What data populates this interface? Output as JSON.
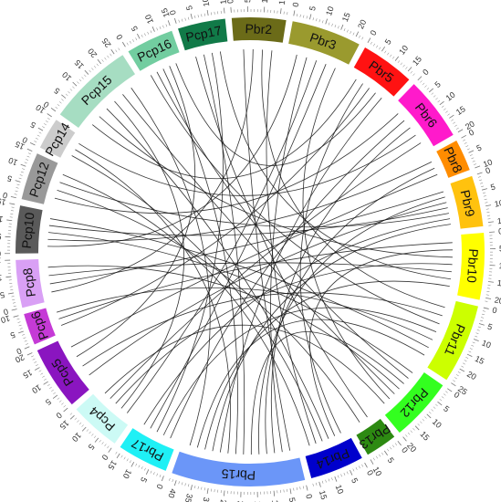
{
  "chart_data": {
    "type": "chord",
    "segments": [
      {
        "name": "Pbr2",
        "color": "#6b6b18",
        "length": 17,
        "ticks": [
          "0",
          "5",
          "10",
          "15"
        ]
      },
      {
        "name": "Pbr3",
        "color": "#9a9a2e",
        "length": 22,
        "ticks": [
          "0",
          "5",
          "10",
          "15",
          "20"
        ]
      },
      {
        "name": "Pbr5",
        "color": "#ff1212",
        "length": 17,
        "ticks": [
          "0",
          "5",
          "10",
          "15"
        ]
      },
      {
        "name": "Pbr6",
        "color": "#ff1acb",
        "length": 20,
        "ticks": [
          "0",
          "5",
          "10",
          "15",
          "20"
        ]
      },
      {
        "name": "Pbr8",
        "color": "#ff8c00",
        "length": 10,
        "ticks": [
          "0",
          "5",
          "10"
        ]
      },
      {
        "name": "Pbr9",
        "color": "#ffc20e",
        "length": 16,
        "ticks": [
          "0",
          "5",
          "10",
          "15"
        ]
      },
      {
        "name": "Pbr10",
        "color": "#ffff00",
        "length": 21,
        "ticks": [
          "0",
          "5",
          "10",
          "15",
          "20"
        ]
      },
      {
        "name": "Pbr11",
        "color": "#ccff00",
        "length": 25,
        "ticks": [
          "0",
          "5",
          "10",
          "15",
          "20",
          "25"
        ]
      },
      {
        "name": "Pbr12",
        "color": "#33ff1f",
        "length": 20,
        "ticks": [
          "0",
          "5",
          "10",
          "15",
          "20"
        ]
      },
      {
        "name": "Pbr13",
        "color": "#2d8a12",
        "length": 10,
        "ticks": [
          "0",
          "5",
          "10"
        ]
      },
      {
        "name": "Pbr14",
        "color": "#0000cc",
        "length": 17,
        "ticks": [
          "0",
          "5",
          "10",
          "15"
        ]
      },
      {
        "name": "Pbr15",
        "color": "#6b96f8",
        "length": 42,
        "ticks": [
          "0",
          "5",
          "10",
          "15",
          "20",
          "25",
          "30",
          "35",
          "40"
        ]
      },
      {
        "name": "Pbr17",
        "color": "#1ff0f5",
        "length": 16,
        "ticks": [
          "0",
          "5",
          "10",
          "15"
        ]
      },
      {
        "name": "Pcp4",
        "color": "#ccfaf5",
        "length": 16,
        "ticks": [
          "0",
          "5",
          "10",
          "15"
        ]
      },
      {
        "name": "Pcp5",
        "color": "#8a15c0",
        "length": 20,
        "ticks": [
          "0",
          "5",
          "10",
          "15",
          "20"
        ]
      },
      {
        "name": "Pcp6",
        "color": "#c53ad6",
        "length": 10,
        "ticks": [
          "0",
          "5",
          "10"
        ]
      },
      {
        "name": "Pcp8",
        "color": "#d9a0f5",
        "length": 15,
        "ticks": [
          "0",
          "5",
          "10",
          "15"
        ]
      },
      {
        "name": "Pcp10",
        "color": "#5a5a5a",
        "length": 15,
        "ticks": [
          "0",
          "5",
          "10",
          "15"
        ]
      },
      {
        "name": "Pcp12",
        "color": "#999999",
        "length": 15,
        "ticks": [
          "0",
          "5",
          "10",
          "15"
        ]
      },
      {
        "name": "Pcp14",
        "color": "#cccccc",
        "length": 10,
        "ticks": [
          "0",
          "5",
          "10"
        ]
      },
      {
        "name": "Pcp15",
        "color": "#a6ddc2",
        "length": 27,
        "ticks": [
          "0",
          "5",
          "10",
          "15",
          "20",
          "25"
        ]
      },
      {
        "name": "Pcp16",
        "color": "#72cda0",
        "length": 15,
        "ticks": [
          "0",
          "5",
          "10",
          "15"
        ]
      },
      {
        "name": "Pcp17",
        "color": "#117a48",
        "length": 15,
        "ticks": [
          "0",
          "5",
          "10",
          "15"
        ]
      }
    ],
    "links": [
      [
        "Pbr2",
        "Pbr15"
      ],
      [
        "Pbr2",
        "Pcp8"
      ],
      [
        "Pbr2",
        "Pbr11"
      ],
      [
        "Pbr3",
        "Pcp10"
      ],
      [
        "Pbr3",
        "Pbr15"
      ],
      [
        "Pbr3",
        "Pcp4"
      ],
      [
        "Pbr5",
        "Pcp15"
      ],
      [
        "Pbr5",
        "Pbr14"
      ],
      [
        "Pbr5",
        "Pcp6"
      ],
      [
        "Pbr6",
        "Pcp12"
      ],
      [
        "Pbr6",
        "Pbr17"
      ],
      [
        "Pbr6",
        "Pbr15"
      ],
      [
        "Pbr8",
        "Pcp10"
      ],
      [
        "Pbr8",
        "Pbr15"
      ],
      [
        "Pbr9",
        "Pcp8"
      ],
      [
        "Pbr9",
        "Pbr15"
      ],
      [
        "Pbr9",
        "Pcp5"
      ],
      [
        "Pbr10",
        "Pcp6"
      ],
      [
        "Pbr10",
        "Pbr14"
      ],
      [
        "Pbr10",
        "Pcp15"
      ],
      [
        "Pbr11",
        "Pcp5"
      ],
      [
        "Pbr11",
        "Pcp16"
      ],
      [
        "Pbr11",
        "Pbr17"
      ],
      [
        "Pbr12",
        "Pcp10"
      ],
      [
        "Pbr12",
        "Pcp16"
      ],
      [
        "Pbr12",
        "Pbr15"
      ],
      [
        "Pbr13",
        "Pcp17"
      ],
      [
        "Pbr13",
        "Pcp12"
      ],
      [
        "Pbr14",
        "Pcp15"
      ],
      [
        "Pbr14",
        "Pcp14"
      ],
      [
        "Pbr15",
        "Pcp17"
      ],
      [
        "Pbr15",
        "Pcp16"
      ],
      [
        "Pbr15",
        "Pcp14"
      ],
      [
        "Pbr17",
        "Pcp17"
      ],
      [
        "Pbr17",
        "Pbr3"
      ],
      [
        "Pcp4",
        "Pcp15"
      ],
      [
        "Pcp4",
        "Pbr10"
      ],
      [
        "Pcp5",
        "Pcp16"
      ],
      [
        "Pcp5",
        "Pbr8"
      ],
      [
        "Pcp6",
        "Pbr11"
      ],
      [
        "Pcp8",
        "Pbr10"
      ],
      [
        "Pcp8",
        "Pbr12"
      ],
      [
        "Pcp10",
        "Pbr9"
      ],
      [
        "Pcp12",
        "Pbr9"
      ],
      [
        "Pcp14",
        "Pbr6"
      ],
      [
        "Pcp15",
        "Pbr12"
      ],
      [
        "Pcp16",
        "Pbr5"
      ],
      [
        "Pcp17",
        "Pbr10"
      ],
      [
        "Pbr2",
        "Pbr14"
      ],
      [
        "Pbr3",
        "Pbr12"
      ],
      [
        "Pbr5",
        "Pbr15"
      ],
      [
        "Pbr6",
        "Pcp4"
      ],
      [
        "Pbr9",
        "Pbr17"
      ],
      [
        "Pbr11",
        "Pcp10"
      ],
      [
        "Pbr12",
        "Pcp4"
      ],
      [
        "Pbr14",
        "Pcp12"
      ],
      [
        "Pbr15",
        "Pbr9"
      ],
      [
        "Pbr15",
        "Pbr10"
      ],
      [
        "Pbr15",
        "Pbr11"
      ],
      [
        "Pcp15",
        "Pbr15"
      ]
    ]
  }
}
